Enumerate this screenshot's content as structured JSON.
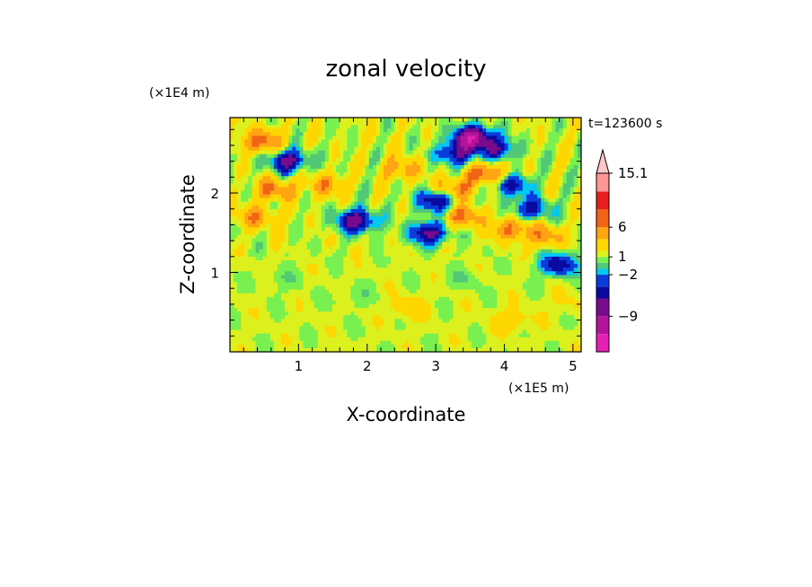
{
  "chart_data": {
    "type": "heatmap",
    "title": "zonal velocity",
    "time_label": "t=123600 s",
    "xlabel": "X-coordinate",
    "ylabel": "Z-coordinate",
    "x_unit": "(×1E5 m)",
    "y_unit": "(×1E4 m)",
    "xlim": [
      0,
      5.12
    ],
    "ylim": [
      0,
      2.95
    ],
    "x_ticks": [
      1,
      2,
      3,
      4,
      5
    ],
    "y_ticks": [
      1,
      2
    ],
    "x_tick_labels": [
      "1",
      "2",
      "3",
      "4",
      "5"
    ],
    "y_tick_labels": [
      "1",
      "2"
    ],
    "colorbar": {
      "extend": "max",
      "levels": [
        -15,
        -12,
        -9,
        -6,
        -4,
        -2,
        -1,
        0,
        1,
        2,
        4,
        6,
        9,
        12,
        15.1
      ],
      "labeled_levels": [
        15.1,
        6,
        1,
        -2,
        -9
      ],
      "labels": [
        "15.1",
        "6",
        "1",
        "−2",
        "−9"
      ],
      "colors": [
        "#e620b4",
        "#b4149b",
        "#780a8c",
        "#0a0aa0",
        "#0a3cdc",
        "#00c8f0",
        "#50c878",
        "#78f050",
        "#dcf01e",
        "#ffd700",
        "#ffa514",
        "#f06414",
        "#e61e1e",
        "#ff9696",
        "#ffc8c8"
      ]
    },
    "field_features": [
      {
        "x": 0.85,
        "z": 2.4,
        "value": -8
      },
      {
        "x": 1.85,
        "z": 1.65,
        "value": -9
      },
      {
        "x": 2.9,
        "z": 1.5,
        "value": -8
      },
      {
        "x": 3.0,
        "z": 1.9,
        "value": -7
      },
      {
        "x": 3.3,
        "z": 2.5,
        "value": -7
      },
      {
        "x": 3.55,
        "z": 2.7,
        "value": -12
      },
      {
        "x": 3.9,
        "z": 2.55,
        "value": -6
      },
      {
        "x": 4.1,
        "z": 2.1,
        "value": -6
      },
      {
        "x": 4.4,
        "z": 1.8,
        "value": -6
      },
      {
        "x": 4.8,
        "z": 1.1,
        "value": -7
      },
      {
        "x": 0.45,
        "z": 2.65,
        "value": 6
      },
      {
        "x": 0.65,
        "z": 2.05,
        "value": 5
      },
      {
        "x": 1.4,
        "z": 2.1,
        "value": 4
      },
      {
        "x": 2.5,
        "z": 2.3,
        "value": 4
      },
      {
        "x": 3.3,
        "z": 2.05,
        "value": 5
      },
      {
        "x": 3.75,
        "z": 2.25,
        "value": 6
      },
      {
        "x": 3.4,
        "z": 1.7,
        "value": 5
      },
      {
        "x": 4.1,
        "z": 1.55,
        "value": 5
      },
      {
        "x": 4.6,
        "z": 1.45,
        "value": 4
      },
      {
        "x": 0.4,
        "z": 1.7,
        "value": 4
      },
      {
        "x": 2.6,
        "z": 0.55,
        "value": 2
      },
      {
        "x": 4.1,
        "z": 0.4,
        "value": 2
      },
      {
        "x": 0.8,
        "z": 0.9,
        "value": -1
      },
      {
        "x": 1.8,
        "z": 0.7,
        "value": -1
      },
      {
        "x": 3.4,
        "z": 0.9,
        "value": -1
      },
      {
        "x": 4.9,
        "z": 0.6,
        "value": 1
      }
    ],
    "grid": false
  }
}
